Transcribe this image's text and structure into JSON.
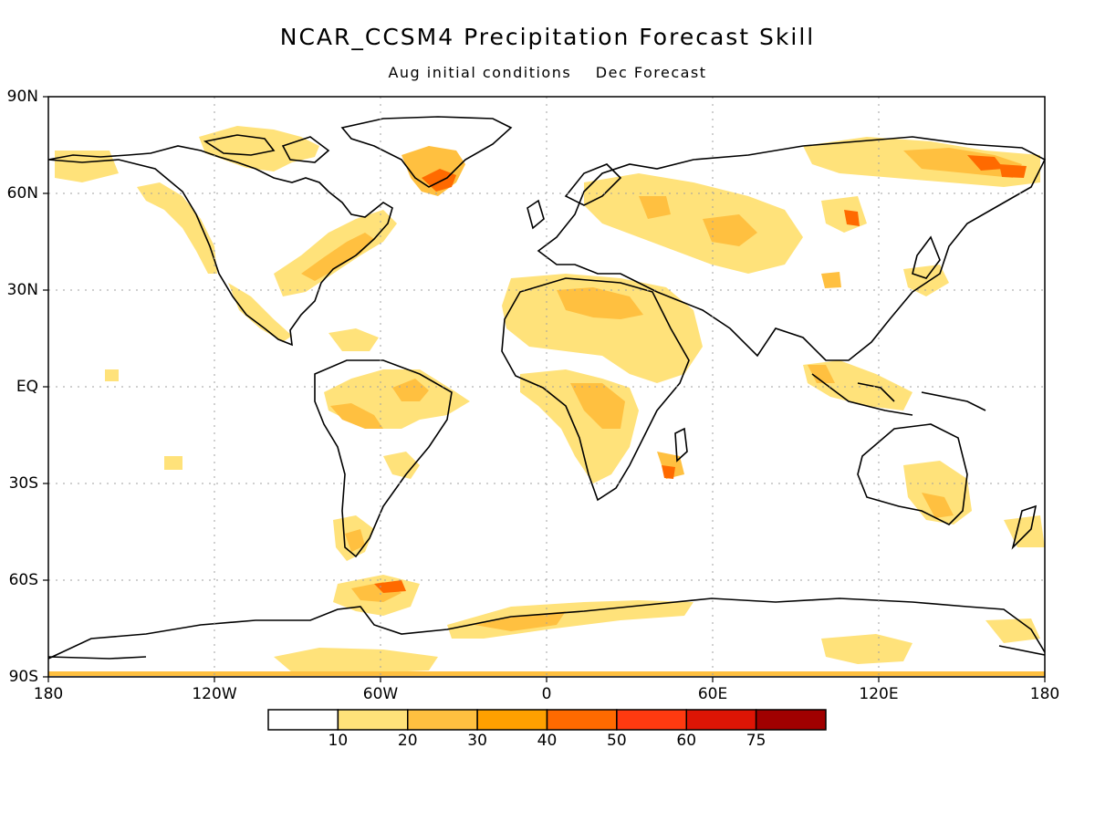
{
  "title": "NCAR_CCSM4 Precipitation Forecast Skill",
  "subtitle": {
    "initial": "Aug initial conditions",
    "forecast": "Dec Forecast"
  },
  "lat_labels": [
    "90N",
    "60N",
    "30N",
    "EQ",
    "30S",
    "60S",
    "90S"
  ],
  "lon_labels": [
    "180",
    "120W",
    "60W",
    "0",
    "60E",
    "120E",
    "180"
  ],
  "colorbar": {
    "labels": [
      "10",
      "20",
      "30",
      "40",
      "50",
      "60",
      "75"
    ],
    "colors": [
      "#ffffff",
      "#ffe27a",
      "#ffc040",
      "#ffa000",
      "#ff6a00",
      "#ff3a10",
      "#dd1505",
      "#a00000"
    ]
  },
  "colors": {
    "coast": "#000000",
    "grid": "#a0a0a0"
  }
}
